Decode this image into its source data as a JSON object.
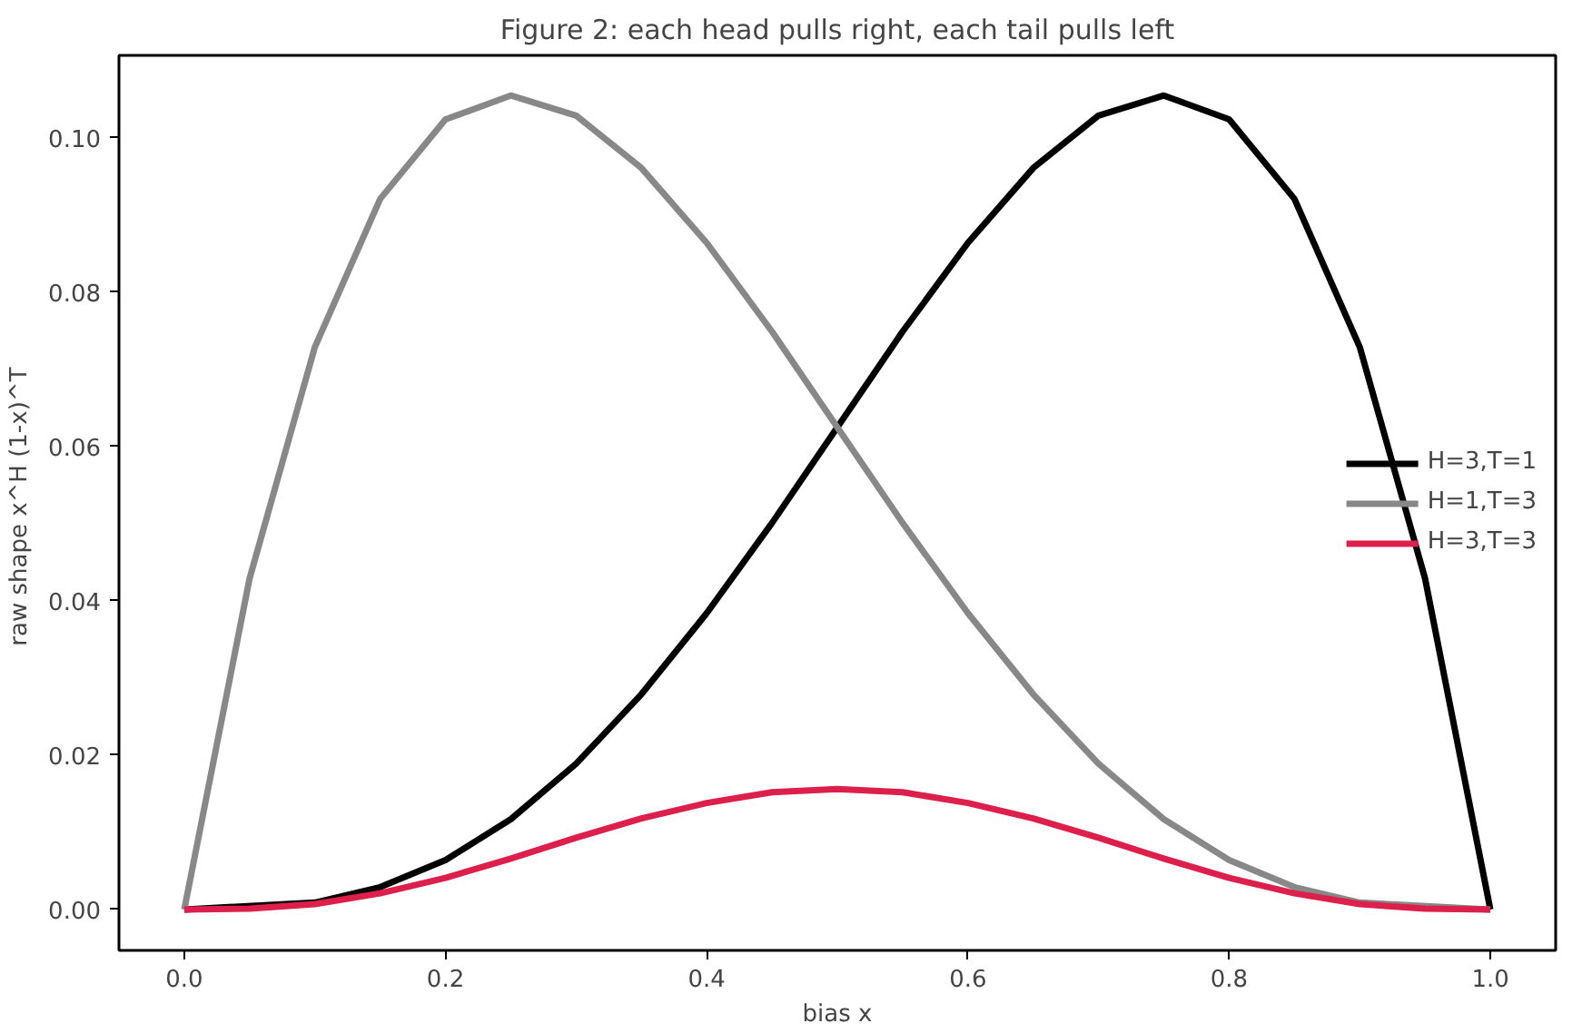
{
  "chart_data": {
    "type": "line",
    "title": "Figure 2: each head pulls right, each tail pulls left",
    "xlabel": "bias x",
    "ylabel": "raw shape  x^H (1-x)^T",
    "x": [
      0,
      0.05,
      0.1,
      0.15,
      0.2,
      0.25,
      0.3,
      0.35,
      0.4,
      0.45,
      0.5,
      0.55,
      0.6,
      0.65,
      0.7,
      0.75,
      0.8,
      0.85,
      0.9,
      0.95,
      1.0
    ],
    "series": [
      {
        "name": "H=3,T=1",
        "color": "#000000",
        "values": [
          0,
          null,
          0.0009,
          0.0029,
          0.0064,
          0.0117,
          0.0189,
          0.0279,
          0.0384,
          0.0501,
          0.0625,
          0.0749,
          0.0864,
          0.0961,
          0.1029,
          0.1055,
          0.1024,
          0.0921,
          0.0729,
          0.0429,
          0
        ]
      },
      {
        "name": "H=1,T=3",
        "color": "#888888",
        "values": [
          0,
          0.0429,
          0.0729,
          0.0921,
          0.1024,
          0.1055,
          0.1029,
          0.0961,
          0.0864,
          0.0749,
          0.0625,
          0.0501,
          0.0384,
          0.0279,
          0.0189,
          0.0117,
          0.0064,
          0.0029,
          0.0009,
          null,
          0
        ]
      },
      {
        "name": "H=3,T=3",
        "color": "#dc1f4b",
        "values": [
          0,
          0.0001,
          0.0007,
          0.0021,
          0.0041,
          0.0066,
          0.0093,
          0.0118,
          0.0138,
          0.0152,
          0.0156,
          0.0152,
          0.0138,
          0.0118,
          0.0093,
          0.0066,
          0.0041,
          0.0021,
          0.0007,
          0.0001,
          0
        ]
      }
    ],
    "xlim": [
      -0.05,
      1.05
    ],
    "ylim": [
      -0.0053,
      0.1107
    ],
    "xticks": [
      {
        "value": 0,
        "label": "0.0"
      },
      {
        "value": 0.2,
        "label": "0.2"
      },
      {
        "value": 0.4,
        "label": "0.4"
      },
      {
        "value": 0.6,
        "label": "0.6"
      },
      {
        "value": 0.8,
        "label": "0.8"
      },
      {
        "value": 1.0,
        "label": "1.0"
      }
    ],
    "yticks": [
      {
        "value": 0,
        "label": "0.00"
      },
      {
        "value": 0.02,
        "label": "0.02"
      },
      {
        "value": 0.04,
        "label": "0.04"
      },
      {
        "value": 0.06,
        "label": "0.06"
      },
      {
        "value": 0.08,
        "label": "0.08"
      },
      {
        "value": 0.1,
        "label": "0.10"
      }
    ],
    "legend": "right",
    "grid": false,
    "line_style": "solid"
  }
}
